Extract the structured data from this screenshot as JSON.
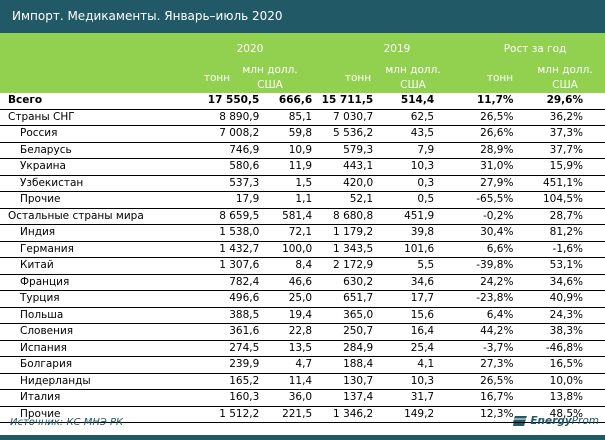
{
  "title": "Импорт. Медикаменты. Январь–июль 2020",
  "header": {
    "groups": [
      "2020",
      "2019",
      "Рост за год"
    ],
    "unit_tons": "тонн",
    "unit_usd_line1": "млн долл.",
    "unit_usd_line2": "США"
  },
  "rows": [
    {
      "name": "Всего",
      "bold": true,
      "indent": false,
      "t2020": "17 550,5",
      "u2020": "666,6",
      "t2019": "15 711,5",
      "u2019": "514,4",
      "gt": "11,7%",
      "gu": "29,6%"
    },
    {
      "name": "Страны СНГ",
      "bold": false,
      "indent": false,
      "t2020": "8 890,9",
      "u2020": "85,1",
      "t2019": "7 030,7",
      "u2019": "62,5",
      "gt": "26,5%",
      "gu": "36,2%"
    },
    {
      "name": "Россия",
      "bold": false,
      "indent": true,
      "t2020": "7 008,2",
      "u2020": "59,8",
      "t2019": "5 536,2",
      "u2019": "43,5",
      "gt": "26,6%",
      "gu": "37,3%"
    },
    {
      "name": "Беларусь",
      "bold": false,
      "indent": true,
      "t2020": "746,9",
      "u2020": "10,9",
      "t2019": "579,3",
      "u2019": "7,9",
      "gt": "28,9%",
      "gu": "37,7%"
    },
    {
      "name": "Украина",
      "bold": false,
      "indent": true,
      "t2020": "580,6",
      "u2020": "11,9",
      "t2019": "443,1",
      "u2019": "10,3",
      "gt": "31,0%",
      "gu": "15,9%"
    },
    {
      "name": "Узбекистан",
      "bold": false,
      "indent": true,
      "t2020": "537,3",
      "u2020": "1,5",
      "t2019": "420,0",
      "u2019": "0,3",
      "gt": "27,9%",
      "gu": "451,1%"
    },
    {
      "name": "Прочие",
      "bold": false,
      "indent": true,
      "t2020": "17,9",
      "u2020": "1,1",
      "t2019": "52,1",
      "u2019": "0,5",
      "gt": "-65,5%",
      "gu": "104,5%"
    },
    {
      "name": "Остальные страны мира",
      "bold": false,
      "indent": false,
      "t2020": "8 659,5",
      "u2020": "581,4",
      "t2019": "8 680,8",
      "u2019": "451,9",
      "gt": "-0,2%",
      "gu": "28,7%"
    },
    {
      "name": "Индия",
      "bold": false,
      "indent": true,
      "t2020": "1 538,0",
      "u2020": "72,1",
      "t2019": "1 179,2",
      "u2019": "39,8",
      "gt": "30,4%",
      "gu": "81,2%"
    },
    {
      "name": "Германия",
      "bold": false,
      "indent": true,
      "t2020": "1 432,7",
      "u2020": "100,0",
      "t2019": "1 343,5",
      "u2019": "101,6",
      "gt": "6,6%",
      "gu": "-1,6%"
    },
    {
      "name": "Китай",
      "bold": false,
      "indent": true,
      "t2020": "1 307,6",
      "u2020": "8,4",
      "t2019": "2 172,9",
      "u2019": "5,5",
      "gt": "-39,8%",
      "gu": "53,1%"
    },
    {
      "name": "Франция",
      "bold": false,
      "indent": true,
      "t2020": "782,4",
      "u2020": "46,6",
      "t2019": "630,2",
      "u2019": "34,6",
      "gt": "24,2%",
      "gu": "34,6%"
    },
    {
      "name": "Турция",
      "bold": false,
      "indent": true,
      "t2020": "496,6",
      "u2020": "25,0",
      "t2019": "651,7",
      "u2019": "17,7",
      "gt": "-23,8%",
      "gu": "40,9%"
    },
    {
      "name": "Польша",
      "bold": false,
      "indent": true,
      "t2020": "388,5",
      "u2020": "19,4",
      "t2019": "365,0",
      "u2019": "15,6",
      "gt": "6,4%",
      "gu": "24,3%"
    },
    {
      "name": "Словения",
      "bold": false,
      "indent": true,
      "t2020": "361,6",
      "u2020": "22,8",
      "t2019": "250,7",
      "u2019": "16,4",
      "gt": "44,2%",
      "gu": "38,3%"
    },
    {
      "name": "Испания",
      "bold": false,
      "indent": true,
      "t2020": "274,5",
      "u2020": "13,5",
      "t2019": "284,9",
      "u2019": "25,4",
      "gt": "-3,7%",
      "gu": "-46,8%"
    },
    {
      "name": "Болгария",
      "bold": false,
      "indent": true,
      "t2020": "239,9",
      "u2020": "4,7",
      "t2019": "188,4",
      "u2019": "4,1",
      "gt": "27,3%",
      "gu": "16,5%"
    },
    {
      "name": "Нидерланды",
      "bold": false,
      "indent": true,
      "t2020": "165,2",
      "u2020": "11,4",
      "t2019": "130,7",
      "u2019": "10,3",
      "gt": "26,5%",
      "gu": "10,0%"
    },
    {
      "name": "Италия",
      "bold": false,
      "indent": true,
      "t2020": "160,3",
      "u2020": "36,0",
      "t2019": "137,4",
      "u2019": "31,7",
      "gt": "16,7%",
      "gu": "13,8%"
    },
    {
      "name": "Прочие",
      "bold": false,
      "indent": true,
      "t2020": "1 512,2",
      "u2020": "221,5",
      "t2019": "1 346,2",
      "u2019": "149,2",
      "gt": "12,3%",
      "gu": "48,5%"
    }
  ],
  "source": "Источник: КС МНЭ РК",
  "logo": {
    "part1": "Energy",
    "part2": "Prom"
  },
  "colors": {
    "title_bg": "#215967",
    "header_bg": "#92d050"
  }
}
